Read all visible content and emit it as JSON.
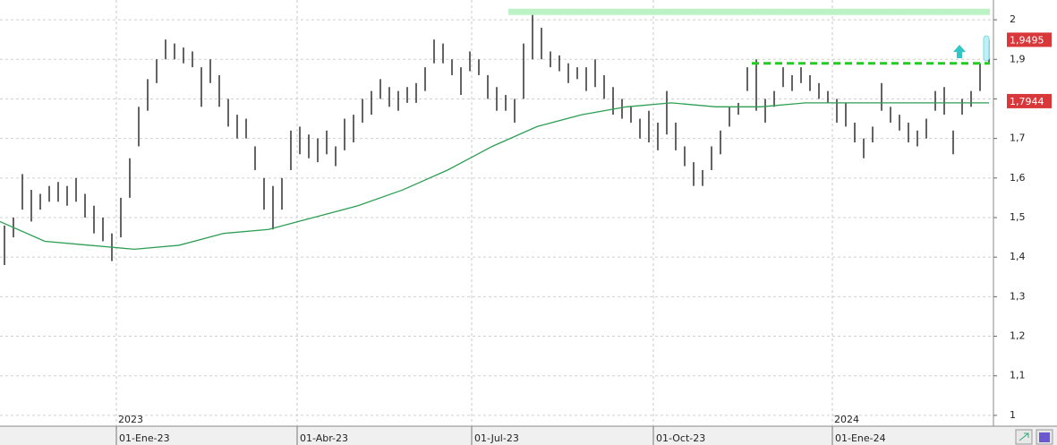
{
  "chart_data": {
    "type": "ohlc",
    "x": [
      5,
      15,
      25,
      35,
      45,
      55,
      65,
      75,
      85,
      95,
      105,
      115,
      125,
      135,
      145,
      155,
      165,
      175,
      185,
      195,
      205,
      215,
      225,
      235,
      245,
      255,
      265,
      275,
      285,
      295,
      305,
      315,
      325,
      335,
      345,
      355,
      365,
      375,
      385,
      395,
      405,
      415,
      425,
      435,
      445,
      455,
      465,
      475,
      485,
      495,
      505,
      515,
      525,
      535,
      545,
      555,
      565,
      575,
      585,
      595,
      605,
      615,
      625,
      635,
      645,
      655,
      665,
      675,
      685,
      695,
      705,
      715,
      725,
      735,
      745,
      755,
      765,
      775,
      785,
      795,
      805,
      815,
      825,
      835,
      845,
      855,
      865,
      875,
      885,
      895,
      905,
      915,
      925,
      935,
      945,
      955,
      965,
      975,
      985,
      995,
      1005,
      1015,
      1025,
      1035,
      1045,
      1055,
      1065,
      1075,
      1085,
      1095,
      1105
    ],
    "low": [
      1.38,
      1.45,
      1.52,
      1.49,
      1.52,
      1.54,
      1.54,
      1.53,
      1.54,
      1.5,
      1.46,
      1.44,
      1.39,
      1.45,
      1.55,
      1.68,
      1.77,
      1.84,
      1.9,
      1.9,
      1.89,
      1.88,
      1.78,
      1.84,
      1.78,
      1.73,
      1.7,
      1.7,
      1.62,
      1.52,
      1.47,
      1.52,
      1.62,
      1.66,
      1.65,
      1.64,
      1.66,
      1.63,
      1.67,
      1.69,
      1.74,
      1.76,
      1.8,
      1.78,
      1.77,
      1.79,
      1.79,
      1.82,
      1.89,
      1.89,
      1.86,
      1.81,
      1.87,
      1.86,
      1.8,
      1.77,
      1.77,
      1.74,
      1.8,
      1.9,
      1.9,
      1.88,
      1.87,
      1.84,
      1.85,
      1.82,
      1.83,
      1.8,
      1.76,
      1.75,
      1.74,
      1.7,
      1.69,
      1.67,
      1.71,
      1.67,
      1.63,
      1.58,
      1.58,
      1.62,
      1.66,
      1.73,
      1.76,
      1.82,
      1.77,
      1.74,
      1.78,
      1.83,
      1.82,
      1.84,
      1.82,
      1.8,
      1.79,
      1.74,
      1.73,
      1.69,
      1.65,
      1.69,
      1.77,
      1.74,
      1.72,
      1.69,
      1.68,
      1.7,
      1.77,
      1.76,
      1.66,
      1.76,
      1.78,
      1.82,
      1.89
    ],
    "high": [
      1.48,
      1.5,
      1.61,
      1.57,
      1.56,
      1.58,
      1.59,
      1.58,
      1.6,
      1.56,
      1.53,
      1.5,
      1.46,
      1.55,
      1.65,
      1.78,
      1.85,
      1.9,
      1.95,
      1.94,
      1.93,
      1.92,
      1.88,
      1.9,
      1.86,
      1.8,
      1.76,
      1.75,
      1.68,
      1.6,
      1.58,
      1.6,
      1.72,
      1.73,
      1.71,
      1.7,
      1.72,
      1.68,
      1.75,
      1.76,
      1.8,
      1.82,
      1.85,
      1.83,
      1.82,
      1.83,
      1.84,
      1.88,
      1.95,
      1.94,
      1.9,
      1.88,
      1.92,
      1.9,
      1.86,
      1.83,
      1.81,
      1.8,
      1.94,
      2.02,
      1.98,
      1.92,
      1.91,
      1.89,
      1.88,
      1.88,
      1.9,
      1.86,
      1.83,
      1.8,
      1.78,
      1.75,
      1.77,
      1.74,
      1.82,
      1.74,
      1.68,
      1.64,
      1.62,
      1.68,
      1.72,
      1.78,
      1.79,
      1.88,
      1.9,
      1.8,
      1.82,
      1.88,
      1.86,
      1.88,
      1.86,
      1.84,
      1.82,
      1.8,
      1.79,
      1.74,
      1.7,
      1.73,
      1.84,
      1.78,
      1.76,
      1.74,
      1.72,
      1.75,
      1.82,
      1.83,
      1.72,
      1.8,
      1.82,
      1.89,
      1.95
    ],
    "color": "#111111",
    "ma": {
      "color": "#2e9e55",
      "x": [
        0,
        50,
        100,
        150,
        200,
        250,
        300,
        350,
        400,
        450,
        500,
        550,
        600,
        650,
        700,
        750,
        800,
        850,
        900,
        950,
        1000,
        1050,
        1105
      ],
      "values": [
        1.49,
        1.44,
        1.43,
        1.42,
        1.43,
        1.46,
        1.47,
        1.5,
        1.53,
        1.57,
        1.62,
        1.68,
        1.73,
        1.76,
        1.78,
        1.79,
        1.78,
        1.78,
        1.79,
        1.79,
        1.79,
        1.79,
        1.79
      ]
    },
    "levels": [
      {
        "value": 2.02,
        "x": [
          568,
          1106
        ],
        "color": "#bdf2c6",
        "style": "solid"
      },
      {
        "value": 1.89,
        "x": [
          840,
          1106
        ],
        "color": "#22cc22",
        "style": "dashed"
      }
    ],
    "price_labels": [
      {
        "value": 1.9495,
        "label": "1,9495"
      },
      {
        "value": 1.7944,
        "label": "1,7944"
      }
    ],
    "xlim": [
      0,
      1110
    ],
    "ylim": [
      0.993,
      2.05
    ],
    "xticks": [
      {
        "value": 130,
        "label": "01-Ene-23"
      },
      {
        "value": 332,
        "label": "01-Abr-23"
      },
      {
        "value": 527,
        "label": "01-Jul-23"
      },
      {
        "value": 730,
        "label": "01-Oct-23"
      },
      {
        "value": 930,
        "label": "01-Ene-24"
      }
    ],
    "year_labels": [
      {
        "value": 130,
        "label": "2023"
      },
      {
        "value": 930,
        "label": "2024"
      }
    ],
    "yticks": [
      1,
      {
        "value": 1.1,
        "label": "1,1"
      },
      {
        "value": 1.2,
        "label": "1,2"
      },
      {
        "value": 1.3,
        "label": "1,3"
      },
      {
        "value": 1.4,
        "label": "1,4"
      },
      {
        "value": 1.5,
        "label": "1,5"
      },
      {
        "value": 1.6,
        "label": "1,6"
      },
      {
        "value": 1.7,
        "label": "1,7"
      },
      {
        "value": 1.8,
        "label": "1,8"
      },
      {
        "value": 1.9,
        "label": "1,9"
      },
      2
    ],
    "grid": true
  }
}
